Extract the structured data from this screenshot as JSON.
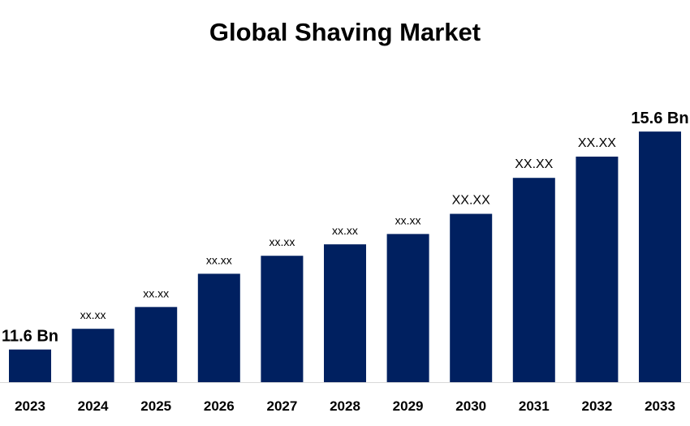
{
  "chart_data": {
    "type": "bar",
    "title": "Global Shaving Market",
    "xlabel": "",
    "ylabel": "",
    "categories": [
      "2023",
      "2024",
      "2025",
      "2026",
      "2027",
      "2028",
      "2029",
      "2030",
      "2031",
      "2032",
      "2033"
    ],
    "values": [
      11.6,
      11.98,
      12.38,
      12.99,
      13.32,
      13.53,
      13.72,
      14.09,
      14.75,
      15.14,
      15.6
    ],
    "data_labels": [
      "11.6 Bn",
      "xx.xx",
      "xx.xx",
      "xx.xx",
      "xx.xx",
      "xx.xx",
      "xx.xx",
      "XX.XX",
      "XX.XX",
      "XX.XX",
      "15.6 Bn"
    ],
    "ylim": [
      11.0,
      15.9
    ],
    "grid": false,
    "legend": "none",
    "bar_color": "#002060"
  }
}
